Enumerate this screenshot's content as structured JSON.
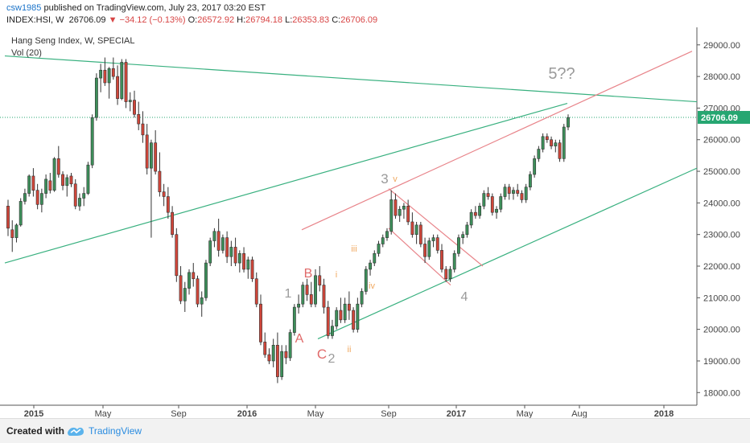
{
  "header": {
    "publisher": "csw1985",
    "published_text": "published on TradingView.com, July 23, 2017 03:20 EST",
    "symbol": "INDEX:HSI, W",
    "price": "26706.09",
    "change": "−34.12 (−0.13%)",
    "o_label": "O:",
    "o_value": "26572.92",
    "h_label": "H:",
    "h_value": "26794.18",
    "l_label": "L:",
    "l_value": "26353.83",
    "c_label": "C:",
    "c_value": "26706.09"
  },
  "legend": {
    "title": "Hang Seng Index, W, SPECIAL",
    "volume": "Vol (20)"
  },
  "colors": {
    "up": "#3d8f5a",
    "down": "#d0463a",
    "trend_green": "#38b07f",
    "trend_red": "#e8848a",
    "wave_grey": "#9a9a9a",
    "wave_orange": "#f0a860",
    "wave_pink": "#e06a6a",
    "price_label_bg": "#26a671"
  },
  "footer": {
    "created_with": "Created with",
    "brand": "TradingView"
  },
  "chart_data": {
    "type": "candlestick",
    "title": "Hang Seng Index, W, SPECIAL",
    "y_range": [
      17600,
      29300
    ],
    "y_ticks": [
      "18000.00",
      "19000.00",
      "20000.00",
      "21000.00",
      "22000.00",
      "23000.00",
      "24000.00",
      "25000.00",
      "26000.00",
      "27000.00",
      "28000.00",
      "29000.00"
    ],
    "x_ticks": [
      "2015",
      "May",
      "Sep",
      "2016",
      "May",
      "Sep",
      "2017",
      "May",
      "Aug",
      "2018"
    ],
    "last_price_label": "26706.09",
    "ohlc": [
      [
        23900,
        24100,
        22950,
        23200
      ],
      [
        23150,
        23450,
        22450,
        22900
      ],
      [
        22900,
        23350,
        22750,
        23300
      ],
      [
        23300,
        24150,
        23250,
        24050
      ],
      [
        24050,
        24450,
        23950,
        24300
      ],
      [
        24300,
        24900,
        24200,
        24850
      ],
      [
        24850,
        25100,
        24200,
        24400
      ],
      [
        24400,
        24600,
        23800,
        23950
      ],
      [
        23950,
        24450,
        23700,
        24300
      ],
      [
        24300,
        24900,
        24150,
        24750
      ],
      [
        24700,
        24950,
        24300,
        24400
      ],
      [
        24400,
        25450,
        24350,
        25400
      ],
      [
        25400,
        25800,
        24800,
        24900
      ],
      [
        24900,
        25000,
        24400,
        24550
      ],
      [
        24550,
        24900,
        24200,
        24800
      ],
      [
        24850,
        24950,
        24500,
        24600
      ],
      [
        24600,
        24750,
        23800,
        23900
      ],
      [
        23900,
        24300,
        23750,
        24150
      ],
      [
        24150,
        24500,
        23900,
        24300
      ],
      [
        24300,
        25300,
        24250,
        25200
      ],
      [
        25200,
        26800,
        25100,
        26700
      ],
      [
        26700,
        28100,
        26600,
        27950
      ],
      [
        27950,
        28400,
        27500,
        28200
      ],
      [
        28200,
        28600,
        27700,
        27800
      ],
      [
        27800,
        28300,
        27300,
        28250
      ],
      [
        28250,
        28600,
        27900,
        28000
      ],
      [
        28000,
        28350,
        27100,
        27300
      ],
      [
        27300,
        28550,
        27250,
        28450
      ],
      [
        28450,
        28550,
        27000,
        27200
      ],
      [
        27200,
        27500,
        26900,
        27250
      ],
      [
        27250,
        27550,
        26700,
        26800
      ],
      [
        26800,
        27200,
        26300,
        26500
      ],
      [
        26500,
        26900,
        25900,
        26150
      ],
      [
        26150,
        26500,
        24900,
        25100
      ],
      [
        25100,
        26000,
        22900,
        25900
      ],
      [
        25900,
        26300,
        24900,
        25000
      ],
      [
        25000,
        25600,
        24200,
        24350
      ],
      [
        24350,
        24600,
        23900,
        24200
      ],
      [
        24200,
        24500,
        23500,
        23700
      ],
      [
        23700,
        23900,
        22900,
        23000
      ],
      [
        23000,
        23200,
        21500,
        21700
      ],
      [
        21700,
        22000,
        20800,
        20900
      ],
      [
        20900,
        21500,
        20550,
        21300
      ],
      [
        21300,
        21900,
        21100,
        21800
      ],
      [
        21800,
        22100,
        21350,
        21600
      ],
      [
        21600,
        21700,
        20700,
        20800
      ],
      [
        20800,
        21200,
        20400,
        21000
      ],
      [
        21000,
        22200,
        20900,
        22100
      ],
      [
        22100,
        22900,
        22000,
        22800
      ],
      [
        22800,
        23200,
        22600,
        23100
      ],
      [
        23100,
        23500,
        22300,
        22500
      ],
      [
        22500,
        23000,
        22400,
        22900
      ],
      [
        22900,
        23100,
        22100,
        22300
      ],
      [
        22300,
        22800,
        22000,
        22600
      ],
      [
        22600,
        22900,
        22000,
        22100
      ],
      [
        22100,
        22500,
        21800,
        22400
      ],
      [
        22400,
        22600,
        21800,
        21900
      ],
      [
        21900,
        22300,
        21600,
        22200
      ],
      [
        22200,
        22300,
        21500,
        21600
      ],
      [
        21600,
        21800,
        20700,
        20800
      ],
      [
        20800,
        21100,
        19500,
        19600
      ],
      [
        19600,
        19900,
        19100,
        19200
      ],
      [
        19200,
        19400,
        18900,
        19000
      ],
      [
        19000,
        19700,
        18800,
        19500
      ],
      [
        19500,
        19900,
        18300,
        18500
      ],
      [
        18500,
        19500,
        18400,
        19300
      ],
      [
        19300,
        19500,
        18900,
        19100
      ],
      [
        19100,
        20000,
        19000,
        19900
      ],
      [
        19900,
        20800,
        19800,
        20700
      ],
      [
        20700,
        21100,
        20500,
        20800
      ],
      [
        20800,
        21500,
        20700,
        21400
      ],
      [
        21400,
        21600,
        20900,
        21100
      ],
      [
        21100,
        21500,
        20700,
        20800
      ],
      [
        20800,
        21900,
        20700,
        21700
      ],
      [
        21700,
        22000,
        21200,
        21400
      ],
      [
        21400,
        21600,
        20500,
        20700
      ],
      [
        20700,
        20900,
        19700,
        19800
      ],
      [
        19800,
        20300,
        19700,
        20100
      ],
      [
        20100,
        20700,
        20000,
        20600
      ],
      [
        20600,
        21000,
        20200,
        20300
      ],
      [
        20300,
        21000,
        20200,
        20800
      ],
      [
        20800,
        21200,
        20300,
        20600
      ],
      [
        20600,
        20700,
        19900,
        20000
      ],
      [
        20000,
        21000,
        19900,
        20800
      ],
      [
        20800,
        21300,
        20700,
        21200
      ],
      [
        21200,
        22000,
        21100,
        21900
      ],
      [
        21900,
        22200,
        21700,
        22100
      ],
      [
        22100,
        22500,
        22000,
        22400
      ],
      [
        22400,
        22800,
        22300,
        22700
      ],
      [
        22700,
        23000,
        22600,
        22900
      ],
      [
        22900,
        23200,
        22800,
        23100
      ],
      [
        23100,
        24400,
        23000,
        24100
      ],
      [
        24100,
        24300,
        23500,
        23600
      ],
      [
        23600,
        23900,
        23400,
        23800
      ],
      [
        23800,
        24000,
        23500,
        23900
      ],
      [
        23900,
        24100,
        23300,
        23400
      ],
      [
        23400,
        23700,
        22900,
        23000
      ],
      [
        23000,
        23400,
        22700,
        23300
      ],
      [
        23300,
        23400,
        22600,
        22700
      ],
      [
        22700,
        22900,
        22100,
        22300
      ],
      [
        22300,
        22900,
        22200,
        22800
      ],
      [
        22800,
        23000,
        22600,
        22900
      ],
      [
        22900,
        23000,
        22400,
        22500
      ],
      [
        22500,
        22700,
        21800,
        21900
      ],
      [
        21900,
        22000,
        21500,
        21600
      ],
      [
        21600,
        22000,
        21500,
        21900
      ],
      [
        21900,
        22500,
        21800,
        22400
      ],
      [
        22400,
        23000,
        22300,
        22900
      ],
      [
        22900,
        23100,
        22700,
        23000
      ],
      [
        23000,
        23400,
        22900,
        23300
      ],
      [
        23300,
        23800,
        23200,
        23700
      ],
      [
        23700,
        23900,
        23500,
        23600
      ],
      [
        23600,
        24000,
        23500,
        23900
      ],
      [
        23900,
        24400,
        23800,
        24300
      ],
      [
        24300,
        24500,
        24100,
        24200
      ],
      [
        24200,
        24300,
        23600,
        23700
      ],
      [
        23700,
        23900,
        23500,
        23800
      ],
      [
        23800,
        24300,
        23700,
        24200
      ],
      [
        24200,
        24600,
        24100,
        24500
      ],
      [
        24500,
        24600,
        24100,
        24300
      ],
      [
        24300,
        24500,
        24100,
        24400
      ],
      [
        24400,
        24600,
        24200,
        24300
      ],
      [
        24300,
        24400,
        24000,
        24100
      ],
      [
        24100,
        24600,
        24000,
        24500
      ],
      [
        24500,
        25000,
        24400,
        24900
      ],
      [
        24900,
        25500,
        24800,
        25400
      ],
      [
        25400,
        25800,
        25300,
        25700
      ],
      [
        25700,
        26200,
        25600,
        26100
      ],
      [
        26100,
        26200,
        25900,
        26000
      ],
      [
        26000,
        26100,
        25700,
        25800
      ],
      [
        25800,
        26000,
        25600,
        25900
      ],
      [
        25900,
        26000,
        25300,
        25400
      ],
      [
        25400,
        26500,
        25300,
        26400
      ],
      [
        26400,
        26800,
        26300,
        26700
      ]
    ],
    "annotations": [
      {
        "text": "5??",
        "color": "grey"
      },
      {
        "text": "3",
        "color": "grey"
      },
      {
        "text": "v",
        "color": "orange"
      },
      {
        "text": "B",
        "color": "pink"
      },
      {
        "text": "1",
        "color": "grey"
      },
      {
        "text": "i",
        "color": "orange"
      },
      {
        "text": "iii",
        "color": "orange"
      },
      {
        "text": "iv",
        "color": "orange"
      },
      {
        "text": "A",
        "color": "pink"
      },
      {
        "text": "C",
        "color": "pink"
      },
      {
        "text": "2",
        "color": "grey"
      },
      {
        "text": "ii",
        "color": "orange"
      },
      {
        "text": "4",
        "color": "grey"
      }
    ]
  }
}
